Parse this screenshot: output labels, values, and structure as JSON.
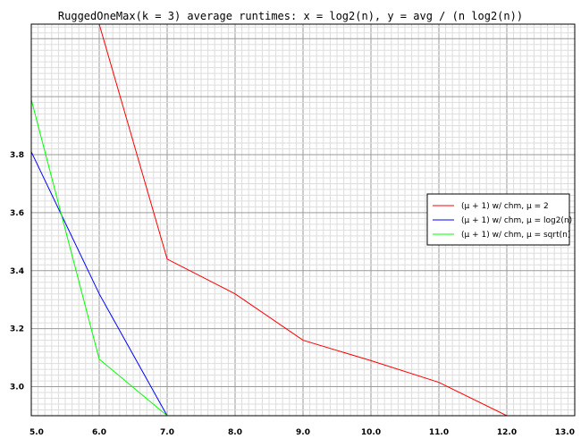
{
  "chart_data": {
    "type": "line",
    "title": "RuggedOneMax(k = 3) average runtimes: x = log2(n), y = avg / (n log2(n))",
    "xlabel": "",
    "ylabel": "",
    "xlim": [
      5.0,
      13.0
    ],
    "ylim": [
      2.9,
      4.25
    ],
    "x_ticks": [
      "5.0",
      "6.0",
      "7.0",
      "8.0",
      "9.0",
      "10.0",
      "11.0",
      "12.0",
      "13.0"
    ],
    "y_ticks": [
      "3.0",
      "3.2",
      "3.4",
      "3.6",
      "3.8"
    ],
    "grid": true,
    "legend_position": "right",
    "series": [
      {
        "name": "(μ + 1) w/ chm, μ = 2",
        "color": "#ff0000",
        "points": [
          [
            5.0,
            4.25
          ],
          [
            6.0,
            4.25
          ],
          [
            7.0,
            3.44
          ],
          [
            8.0,
            3.32
          ],
          [
            9.0,
            3.16
          ],
          [
            10.0,
            3.09
          ],
          [
            11.0,
            3.015
          ],
          [
            12.0,
            2.9
          ],
          [
            13.0,
            2.9
          ]
        ]
      },
      {
        "name": "(μ + 1) w/ chm, μ = log2(n)",
        "color": "#0000ff",
        "points": [
          [
            5.0,
            3.81
          ],
          [
            6.0,
            3.32
          ],
          [
            7.0,
            2.9
          ],
          [
            13.0,
            2.9
          ]
        ]
      },
      {
        "name": "(μ + 1) w/ chm, μ = sqrt(n)",
        "color": "#00ff00",
        "points": [
          [
            5.0,
            3.99
          ],
          [
            6.0,
            3.095
          ],
          [
            7.0,
            2.9
          ],
          [
            13.0,
            2.9
          ]
        ]
      }
    ]
  }
}
